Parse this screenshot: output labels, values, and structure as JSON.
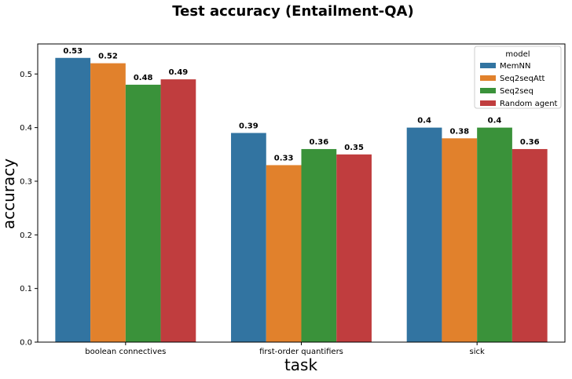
{
  "chart_data": {
    "type": "bar",
    "title": "Test accuracy (Entailment-QA)",
    "xlabel": "task",
    "ylabel": "accuracy",
    "categories": [
      "boolean connectives",
      "first-order quantifiers",
      "sick"
    ],
    "series": [
      {
        "name": "MemNN",
        "color": "#3274a1",
        "values": [
          0.53,
          0.39,
          0.4
        ],
        "labels": [
          "0.53",
          "0.39",
          "0.4"
        ]
      },
      {
        "name": "Seq2seqAtt",
        "color": "#e1812c",
        "values": [
          0.52,
          0.33,
          0.38
        ],
        "labels": [
          "0.52",
          "0.33",
          "0.38"
        ]
      },
      {
        "name": "Seq2seq",
        "color": "#3a923a",
        "values": [
          0.48,
          0.36,
          0.4
        ],
        "labels": [
          "0.48",
          "0.36",
          "0.4"
        ]
      },
      {
        "name": "Random agent",
        "color": "#c03d3e",
        "values": [
          0.49,
          0.35,
          0.36
        ],
        "labels": [
          "0.49",
          "0.35",
          "0.36"
        ]
      }
    ],
    "ylim": [
      0,
      0.556
    ],
    "yticks": [
      "0.0",
      "0.1",
      "0.2",
      "0.3",
      "0.4",
      "0.5"
    ],
    "legend": {
      "title": "model",
      "placement": "top-right"
    },
    "grid": false
  }
}
